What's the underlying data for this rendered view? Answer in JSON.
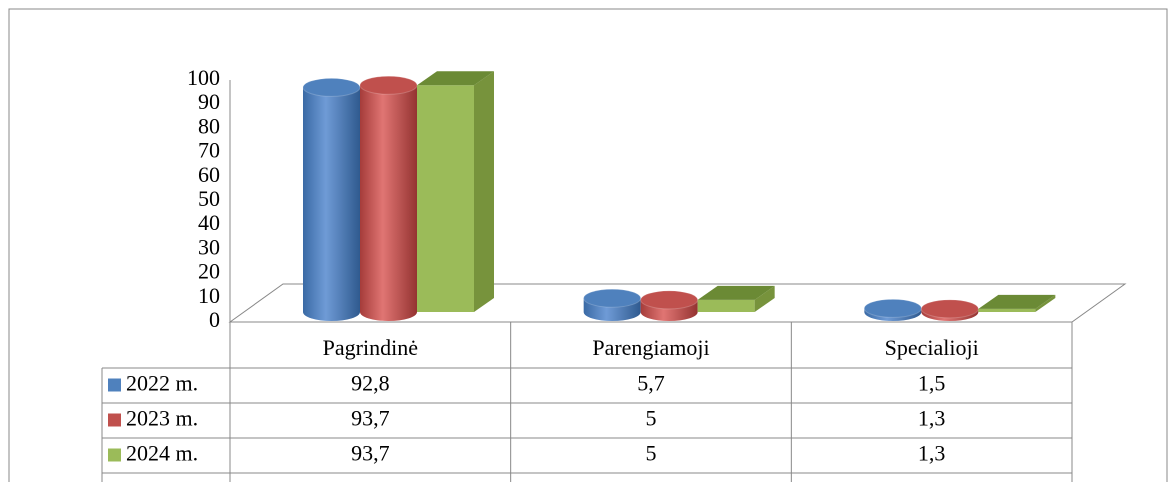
{
  "chart_data": {
    "type": "bar3d",
    "categories": [
      "Pagrindinė",
      "Parengiamoji",
      "Specialioji"
    ],
    "series": [
      {
        "name": "2022 m.",
        "color": "#4f81bd",
        "shape": "cylinder",
        "values": [
          92.8,
          5.7,
          1.5
        ],
        "value_labels": [
          "92,8",
          "5,7",
          "1,5"
        ]
      },
      {
        "name": "2023 m.",
        "color": "#c0504d",
        "shape": "cylinder",
        "values": [
          93.7,
          5,
          1.3
        ],
        "value_labels": [
          "93,7",
          "5",
          "1,3"
        ]
      },
      {
        "name": "2024 m.",
        "color": "#9bbb59",
        "shape": "box",
        "values": [
          93.7,
          5,
          1.3
        ],
        "value_labels": [
          "93,7",
          "5",
          "1,3"
        ]
      }
    ],
    "ylim": [
      0,
      100
    ],
    "yticks": [
      0,
      10,
      20,
      30,
      40,
      50,
      60,
      70,
      80,
      90,
      100
    ],
    "data_table": true
  }
}
